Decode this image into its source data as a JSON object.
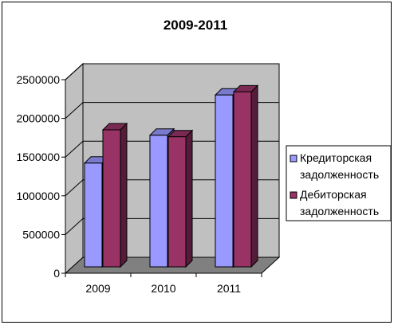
{
  "chart_data": {
    "type": "bar",
    "title": "2009-2011",
    "categories": [
      "2009",
      "2010",
      "2011"
    ],
    "series": [
      {
        "name": "Кредиторская задолженность",
        "values": [
          1340000,
          1700000,
          2220000
        ],
        "color": "#9999ff"
      },
      {
        "name": "Дебиторская задолженность",
        "values": [
          1770000,
          1680000,
          2260000
        ],
        "color": "#993366"
      }
    ],
    "yticks": [
      0,
      500000,
      1000000,
      1500000,
      2000000,
      2500000
    ],
    "ytick_labels": [
      "0",
      "500000",
      "1000000",
      "1500000",
      "2000000",
      "2500000"
    ],
    "ylim": [
      0,
      2500000
    ],
    "xlabel": "",
    "ylabel": "",
    "grid": true,
    "legend_position": "right",
    "style": "3d-clustered-column",
    "wall_color": "#c0c0c0",
    "floor_color": "#808080"
  }
}
